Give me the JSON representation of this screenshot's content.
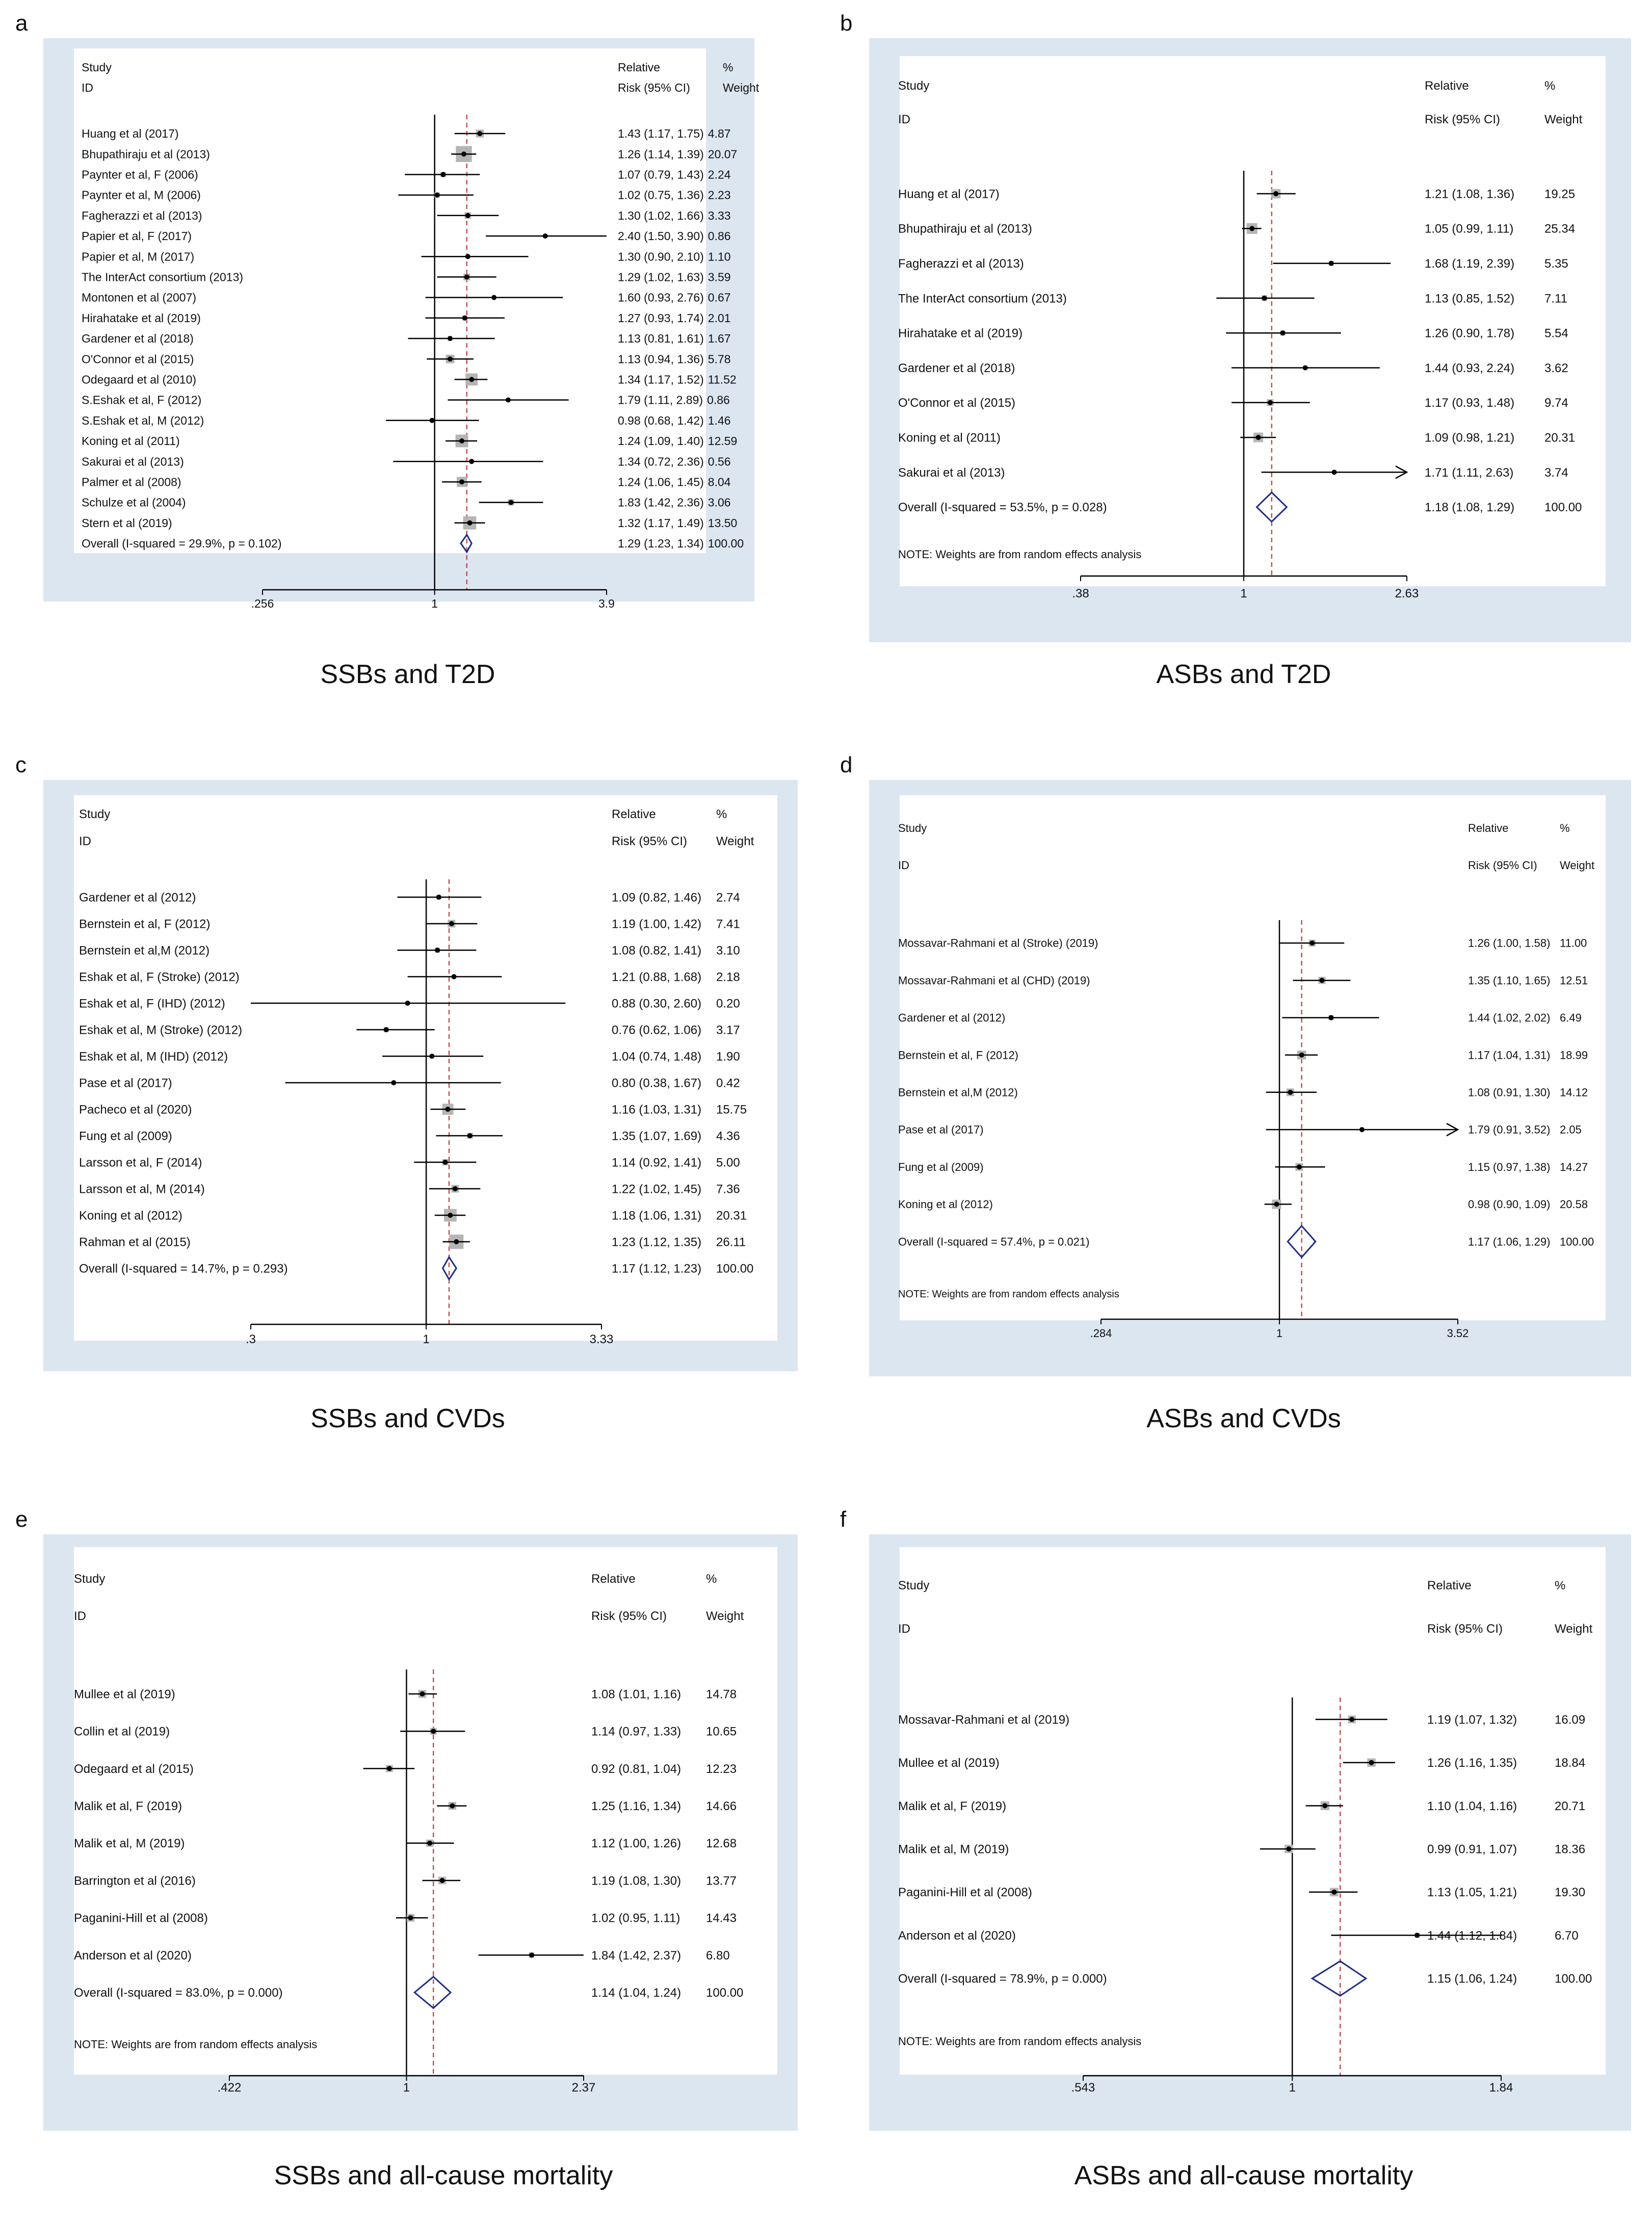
{
  "chart_data": [
    {
      "type": "forest",
      "panel": "a",
      "caption": "SSBs and T2D",
      "header": {
        "study": "Study",
        "id": "ID",
        "rel1": "Relative",
        "rel2": "Risk (95% CI)",
        "pct1": "%",
        "pct2": "Weight"
      },
      "xticks": [
        ".256",
        "1",
        "3.9"
      ],
      "xrange": [
        0.256,
        3.9
      ],
      "overall_line": 1.29,
      "studies": [
        {
          "label": "Huang et al (2017)",
          "rr": 1.43,
          "lo": 1.17,
          "hi": 1.75,
          "ci": "1.43 (1.17, 1.75)",
          "weight": "4.87"
        },
        {
          "label": "Bhupathiraju et al (2013)",
          "rr": 1.26,
          "lo": 1.14,
          "hi": 1.39,
          "ci": "1.26 (1.14, 1.39)",
          "weight": "20.07"
        },
        {
          "label": "Paynter et al, F (2006)",
          "rr": 1.07,
          "lo": 0.79,
          "hi": 1.43,
          "ci": "1.07 (0.79, 1.43)",
          "weight": "2.24"
        },
        {
          "label": "Paynter et al, M (2006)",
          "rr": 1.02,
          "lo": 0.75,
          "hi": 1.36,
          "ci": "1.02 (0.75, 1.36)",
          "weight": "2.23"
        },
        {
          "label": "Fagherazzi et al (2013)",
          "rr": 1.3,
          "lo": 1.02,
          "hi": 1.66,
          "ci": "1.30 (1.02, 1.66)",
          "weight": "3.33"
        },
        {
          "label": "Papier et al, F (2017)",
          "rr": 2.4,
          "lo": 1.5,
          "hi": 3.9,
          "ci": "2.40 (1.50, 3.90)",
          "weight": "0.86"
        },
        {
          "label": "Papier et al, M (2017)",
          "rr": 1.3,
          "lo": 0.9,
          "hi": 2.1,
          "ci": "1.30 (0.90, 2.10)",
          "weight": "1.10"
        },
        {
          "label": "The InterAct consortium (2013)",
          "rr": 1.29,
          "lo": 1.02,
          "hi": 1.63,
          "ci": "1.29 (1.02, 1.63)",
          "weight": "3.59"
        },
        {
          "label": "Montonen et al (2007)",
          "rr": 1.6,
          "lo": 0.93,
          "hi": 2.76,
          "ci": "1.60 (0.93, 2.76)",
          "weight": "0.67"
        },
        {
          "label": "Hirahatake et al (2019)",
          "rr": 1.27,
          "lo": 0.93,
          "hi": 1.74,
          "ci": "1.27 (0.93, 1.74)",
          "weight": "2.01"
        },
        {
          "label": "Gardener et al (2018)",
          "rr": 1.13,
          "lo": 0.81,
          "hi": 1.61,
          "ci": "1.13 (0.81, 1.61)",
          "weight": "1.67"
        },
        {
          "label": "O'Connor et al (2015)",
          "rr": 1.13,
          "lo": 0.94,
          "hi": 1.36,
          "ci": "1.13 (0.94, 1.36)",
          "weight": "5.78"
        },
        {
          "label": "Odegaard et al (2010)",
          "rr": 1.34,
          "lo": 1.17,
          "hi": 1.52,
          "ci": "1.34 (1.17, 1.52)",
          "weight": "11.52"
        },
        {
          "label": "S.Eshak et al, F (2012)",
          "rr": 1.79,
          "lo": 1.11,
          "hi": 2.89,
          "ci": "1.79 (1.11, 2.89)",
          "weight": "0.86"
        },
        {
          "label": "S.Eshak et al, M (2012)",
          "rr": 0.98,
          "lo": 0.68,
          "hi": 1.42,
          "ci": "0.98 (0.68, 1.42)",
          "weight": "1.46"
        },
        {
          "label": "Koning et al (2011)",
          "rr": 1.24,
          "lo": 1.09,
          "hi": 1.4,
          "ci": "1.24 (1.09, 1.40)",
          "weight": "12.59"
        },
        {
          "label": "Sakurai et al (2013)",
          "rr": 1.34,
          "lo": 0.72,
          "hi": 2.36,
          "ci": "1.34 (0.72, 2.36)",
          "weight": "0.56"
        },
        {
          "label": "Palmer et al (2008)",
          "rr": 1.24,
          "lo": 1.06,
          "hi": 1.45,
          "ci": "1.24 (1.06, 1.45)",
          "weight": "8.04"
        },
        {
          "label": "Schulze et al (2004)",
          "rr": 1.83,
          "lo": 1.42,
          "hi": 2.36,
          "ci": "1.83 (1.42, 2.36)",
          "weight": "3.06"
        },
        {
          "label": "Stern et al (2019)",
          "rr": 1.32,
          "lo": 1.17,
          "hi": 1.49,
          "ci": "1.32 (1.17, 1.49)",
          "weight": "13.50"
        }
      ],
      "overall": {
        "label": "Overall  (I-squared = 29.9%, p = 0.102)",
        "rr": 1.29,
        "lo": 1.23,
        "hi": 1.34,
        "ci": "1.29 (1.23, 1.34)",
        "weight": "100.00"
      },
      "note": ""
    },
    {
      "type": "forest",
      "panel": "b",
      "caption": "ASBs and T2D",
      "header": {
        "study": "Study",
        "id": "ID",
        "rel1": "Relative",
        "rel2": "Risk (95% CI)",
        "pct1": "%",
        "pct2": "Weight"
      },
      "xticks": [
        ".38",
        "1",
        "2.63"
      ],
      "xrange": [
        0.38,
        2.63
      ],
      "overall_line": 1.18,
      "studies": [
        {
          "label": "Huang et al (2017)",
          "rr": 1.21,
          "lo": 1.08,
          "hi": 1.36,
          "ci": "1.21 (1.08, 1.36)",
          "weight": "19.25"
        },
        {
          "label": "Bhupathiraju et al (2013)",
          "rr": 1.05,
          "lo": 0.99,
          "hi": 1.11,
          "ci": "1.05 (0.99, 1.11)",
          "weight": "25.34"
        },
        {
          "label": "Fagherazzi et al (2013)",
          "rr": 1.68,
          "lo": 1.19,
          "hi": 2.39,
          "ci": "1.68 (1.19, 2.39)",
          "weight": "5.35"
        },
        {
          "label": "The InterAct consortium (2013)",
          "rr": 1.13,
          "lo": 0.85,
          "hi": 1.52,
          "ci": "1.13 (0.85, 1.52)",
          "weight": "7.11"
        },
        {
          "label": "Hirahatake et al (2019)",
          "rr": 1.26,
          "lo": 0.9,
          "hi": 1.78,
          "ci": "1.26 (0.90, 1.78)",
          "weight": "5.54"
        },
        {
          "label": "Gardener et al (2018)",
          "rr": 1.44,
          "lo": 0.93,
          "hi": 2.24,
          "ci": "1.44 (0.93, 2.24)",
          "weight": "3.62"
        },
        {
          "label": "O'Connor et al (2015)",
          "rr": 1.17,
          "lo": 0.93,
          "hi": 1.48,
          "ci": "1.17 (0.93, 1.48)",
          "weight": "9.74"
        },
        {
          "label": "Koning et al (2011)",
          "rr": 1.09,
          "lo": 0.98,
          "hi": 1.21,
          "ci": "1.09 (0.98, 1.21)",
          "weight": "20.31"
        },
        {
          "label": "Sakurai et al (2013)",
          "rr": 1.71,
          "lo": 1.11,
          "hi": 2.63,
          "ci": "1.71 (1.11, 2.63)",
          "weight": "3.74",
          "arrow": true
        }
      ],
      "overall": {
        "label": "Overall  (I-squared = 53.5%, p = 0.028)",
        "rr": 1.18,
        "lo": 1.08,
        "hi": 1.29,
        "ci": "1.18 (1.08, 1.29)",
        "weight": "100.00"
      },
      "note": "NOTE: Weights are from random effects analysis"
    },
    {
      "type": "forest",
      "panel": "c",
      "caption": "SSBs and CVDs",
      "header": {
        "study": "Study",
        "id": "ID",
        "rel1": "Relative",
        "rel2": "Risk (95% CI)",
        "pct1": "%",
        "pct2": "Weight"
      },
      "xticks": [
        ".3",
        "1",
        "3.33"
      ],
      "xrange": [
        0.3,
        3.33
      ],
      "overall_line": 1.17,
      "studies": [
        {
          "label": "Gardener et al (2012)",
          "rr": 1.09,
          "lo": 0.82,
          "hi": 1.46,
          "ci": "1.09 (0.82, 1.46)",
          "weight": "2.74"
        },
        {
          "label": "Bernstein et al, F (2012)",
          "rr": 1.19,
          "lo": 1.0,
          "hi": 1.42,
          "ci": "1.19 (1.00, 1.42)",
          "weight": "7.41"
        },
        {
          "label": "Bernstein et al,M (2012)",
          "rr": 1.08,
          "lo": 0.82,
          "hi": 1.41,
          "ci": "1.08 (0.82, 1.41)",
          "weight": "3.10"
        },
        {
          "label": "Eshak et al, F (Stroke) (2012)",
          "rr": 1.21,
          "lo": 0.88,
          "hi": 1.68,
          "ci": "1.21 (0.88, 1.68)",
          "weight": "2.18"
        },
        {
          "label": "Eshak et al, F (IHD) (2012)",
          "rr": 0.88,
          "lo": 0.3,
          "hi": 2.6,
          "ci": "0.88 (0.30, 2.60)",
          "weight": "0.20"
        },
        {
          "label": "Eshak et al, M (Stroke) (2012)",
          "rr": 0.76,
          "lo": 0.62,
          "hi": 1.06,
          "ci": "0.76 (0.62, 1.06)",
          "weight": "3.17"
        },
        {
          "label": "Eshak et al, M (IHD)    (2012)",
          "rr": 1.04,
          "lo": 0.74,
          "hi": 1.48,
          "ci": "1.04 (0.74, 1.48)",
          "weight": "1.90"
        },
        {
          "label": "Pase et al (2017)",
          "rr": 0.8,
          "lo": 0.38,
          "hi": 1.67,
          "ci": "0.80 (0.38, 1.67)",
          "weight": "0.42"
        },
        {
          "label": "Pacheco et al (2020)",
          "rr": 1.16,
          "lo": 1.03,
          "hi": 1.31,
          "ci": "1.16 (1.03, 1.31)",
          "weight": "15.75"
        },
        {
          "label": "Fung et al (2009)",
          "rr": 1.35,
          "lo": 1.07,
          "hi": 1.69,
          "ci": "1.35 (1.07, 1.69)",
          "weight": "4.36"
        },
        {
          "label": "Larsson et al, F (2014)",
          "rr": 1.14,
          "lo": 0.92,
          "hi": 1.41,
          "ci": "1.14 (0.92, 1.41)",
          "weight": "5.00"
        },
        {
          "label": "Larsson et al, M (2014)",
          "rr": 1.22,
          "lo": 1.02,
          "hi": 1.45,
          "ci": "1.22 (1.02, 1.45)",
          "weight": "7.36"
        },
        {
          "label": "Koning et al (2012)",
          "rr": 1.18,
          "lo": 1.06,
          "hi": 1.31,
          "ci": "1.18 (1.06, 1.31)",
          "weight": "20.31"
        },
        {
          "label": "Rahman et al (2015)",
          "rr": 1.23,
          "lo": 1.12,
          "hi": 1.35,
          "ci": "1.23 (1.12, 1.35)",
          "weight": "26.11"
        }
      ],
      "overall": {
        "label": "Overall  (I-squared = 14.7%, p = 0.293)",
        "rr": 1.17,
        "lo": 1.12,
        "hi": 1.23,
        "ci": "1.17 (1.12, 1.23)",
        "weight": "100.00"
      },
      "note": ""
    },
    {
      "type": "forest",
      "panel": "d",
      "caption": "ASBs and CVDs",
      "header": {
        "study": "Study",
        "id": "ID",
        "rel1": "Relative",
        "rel2": "Risk (95% CI)",
        "pct1": "%",
        "pct2": "Weight"
      },
      "xticks": [
        ".284",
        "1",
        "3.52"
      ],
      "xrange": [
        0.284,
        3.52
      ],
      "overall_line": 1.17,
      "studies": [
        {
          "label": "Mossavar-Rahmani et al (Stroke) (2019)",
          "rr": 1.26,
          "lo": 1.0,
          "hi": 1.58,
          "ci": "1.26 (1.00, 1.58)",
          "weight": "11.00"
        },
        {
          "label": "Mossavar-Rahmani et al (CHD) (2019)",
          "rr": 1.35,
          "lo": 1.1,
          "hi": 1.65,
          "ci": "1.35 (1.10, 1.65)",
          "weight": "12.51"
        },
        {
          "label": "Gardener et al (2012)",
          "rr": 1.44,
          "lo": 1.02,
          "hi": 2.02,
          "ci": "1.44 (1.02, 2.02)",
          "weight": "6.49"
        },
        {
          "label": "Bernstein et al, F (2012)",
          "rr": 1.17,
          "lo": 1.04,
          "hi": 1.31,
          "ci": "1.17 (1.04, 1.31)",
          "weight": "18.99"
        },
        {
          "label": "Bernstein et al,M (2012)",
          "rr": 1.08,
          "lo": 0.91,
          "hi": 1.3,
          "ci": "1.08 (0.91, 1.30)",
          "weight": "14.12"
        },
        {
          "label": "Pase et al (2017)",
          "rr": 1.79,
          "lo": 0.91,
          "hi": 3.52,
          "ci": "1.79 (0.91, 3.52)",
          "weight": "2.05",
          "arrow": true
        },
        {
          "label": "Fung et al (2009)",
          "rr": 1.15,
          "lo": 0.97,
          "hi": 1.38,
          "ci": "1.15 (0.97, 1.38)",
          "weight": "14.27"
        },
        {
          "label": "Koning et al (2012)",
          "rr": 0.98,
          "lo": 0.9,
          "hi": 1.09,
          "ci": "0.98 (0.90, 1.09)",
          "weight": "20.58"
        }
      ],
      "overall": {
        "label": "Overall  (I-squared = 57.4%, p = 0.021)",
        "rr": 1.17,
        "lo": 1.06,
        "hi": 1.29,
        "ci": "1.17 (1.06, 1.29)",
        "weight": "100.00"
      },
      "note": "NOTE: Weights are from random effects analysis"
    },
    {
      "type": "forest",
      "panel": "e",
      "caption": "SSBs and all-cause mortality",
      "header": {
        "study": "Study",
        "id": "ID",
        "rel1": "Relative",
        "rel2": "Risk (95% CI)",
        "pct1": "%",
        "pct2": "Weight"
      },
      "xticks": [
        ".422",
        "1",
        "2.37"
      ],
      "xrange": [
        0.422,
        2.37
      ],
      "overall_line": 1.14,
      "studies": [
        {
          "label": "Mullee et al (2019)",
          "rr": 1.08,
          "lo": 1.01,
          "hi": 1.16,
          "ci": "1.08 (1.01, 1.16)",
          "weight": "14.78"
        },
        {
          "label": "Collin et al (2019)",
          "rr": 1.14,
          "lo": 0.97,
          "hi": 1.33,
          "ci": "1.14 (0.97, 1.33)",
          "weight": "10.65"
        },
        {
          "label": "Odegaard et al (2015)",
          "rr": 0.92,
          "lo": 0.81,
          "hi": 1.04,
          "ci": "0.92 (0.81, 1.04)",
          "weight": "12.23"
        },
        {
          "label": "Malik et al, F (2019)",
          "rr": 1.25,
          "lo": 1.16,
          "hi": 1.34,
          "ci": "1.25 (1.16, 1.34)",
          "weight": "14.66"
        },
        {
          "label": "Malik et al, M (2019)",
          "rr": 1.12,
          "lo": 1.0,
          "hi": 1.26,
          "ci": "1.12 (1.00, 1.26)",
          "weight": "12.68"
        },
        {
          "label": "Barrington et al (2016)",
          "rr": 1.19,
          "lo": 1.08,
          "hi": 1.3,
          "ci": "1.19 (1.08, 1.30)",
          "weight": "13.77"
        },
        {
          "label": "Paganini-Hill et al (2008)",
          "rr": 1.02,
          "lo": 0.95,
          "hi": 1.11,
          "ci": "1.02 (0.95, 1.11)",
          "weight": "14.43"
        },
        {
          "label": "Anderson et al (2020)",
          "rr": 1.84,
          "lo": 1.42,
          "hi": 2.37,
          "ci": "1.84 (1.42, 2.37)",
          "weight": "6.80"
        }
      ],
      "overall": {
        "label": "Overall  (I-squared = 83.0%, p = 0.000)",
        "rr": 1.14,
        "lo": 1.04,
        "hi": 1.24,
        "ci": "1.14 (1.04, 1.24)",
        "weight": "100.00"
      },
      "note": "NOTE: Weights are from random effects analysis"
    },
    {
      "type": "forest",
      "panel": "f",
      "caption": "ASBs and all-cause mortality",
      "header": {
        "study": "Study",
        "id": "ID",
        "rel1": "Relative",
        "rel2": "Risk (95% CI)",
        "pct1": "%",
        "pct2": "Weight"
      },
      "xticks": [
        ".543",
        "1",
        "1.84"
      ],
      "xrange": [
        0.543,
        1.84
      ],
      "overall_line": 1.15,
      "studies": [
        {
          "label": "Mossavar-Rahmani et al (2019)",
          "rr": 1.19,
          "lo": 1.07,
          "hi": 1.32,
          "ci": "1.19 (1.07, 1.32)",
          "weight": "16.09"
        },
        {
          "label": "Mullee et al (2019)",
          "rr": 1.26,
          "lo": 1.16,
          "hi": 1.35,
          "ci": "1.26 (1.16, 1.35)",
          "weight": "18.84"
        },
        {
          "label": "Malik et al, F (2019)",
          "rr": 1.1,
          "lo": 1.04,
          "hi": 1.16,
          "ci": "1.10 (1.04, 1.16)",
          "weight": "20.71"
        },
        {
          "label": "Malik et al, M (2019)",
          "rr": 0.99,
          "lo": 0.91,
          "hi": 1.07,
          "ci": "0.99 (0.91, 1.07)",
          "weight": "18.36"
        },
        {
          "label": "Paganini-Hill et al (2008)",
          "rr": 1.13,
          "lo": 1.05,
          "hi": 1.21,
          "ci": "1.13 (1.05, 1.21)",
          "weight": "19.30"
        },
        {
          "label": "Anderson et al (2020)",
          "rr": 1.44,
          "lo": 1.12,
          "hi": 1.84,
          "ci": "1.44 (1.12, 1.84)",
          "weight": "6.70"
        }
      ],
      "overall": {
        "label": "Overall  (I-squared = 78.9%, p = 0.000)",
        "rr": 1.15,
        "lo": 1.06,
        "hi": 1.24,
        "ci": "1.15 (1.06, 1.24)",
        "weight": "100.00"
      },
      "note": "NOTE: Weights are from random effects analysis"
    }
  ],
  "colors": {
    "outer_bg": "#dce6f1",
    "inner_bg": "#ffffff",
    "box": "#b5b5b5",
    "line": "#000000",
    "dash": "#c0504d",
    "diamond": "#1f2e86"
  }
}
